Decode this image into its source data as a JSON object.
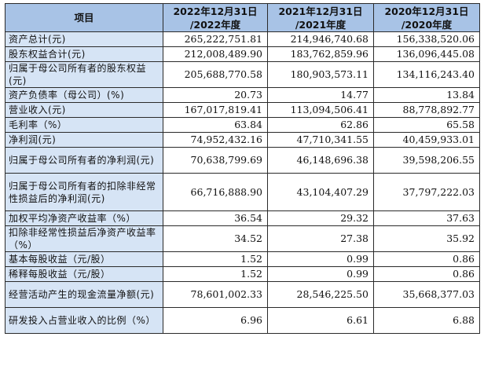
{
  "header": {
    "item": "项目",
    "col1_line1": "2022年12月31日",
    "col1_line2": "/2022年度",
    "col2_line1": "2021年12月31日",
    "col2_line2": "/2021年度",
    "col3_line1": "2020年12月31日",
    "col3_line2": "/2020年度"
  },
  "rows": [
    {
      "label": "资产总计(元)",
      "v2022": "265,222,751.81",
      "v2021": "214,946,740.68",
      "v2020": "156,338,520.06"
    },
    {
      "label": "股东权益合计(元)",
      "v2022": "212,008,489.90",
      "v2021": "183,762,859.96",
      "v2020": "136,096,445.08"
    },
    {
      "label": "归属于母公司所有者的股东权益(元)",
      "v2022": "205,688,770.58",
      "v2021": "180,903,573.11",
      "v2020": "134,116,243.40"
    },
    {
      "label": "资产负债率（母公司）(%)",
      "v2022": "20.73",
      "v2021": "14.77",
      "v2020": "13.84"
    },
    {
      "label": "营业收入(元)",
      "v2022": "167,017,819.41",
      "v2021": "113,094,506.41",
      "v2020": "88,778,892.77"
    },
    {
      "label": "毛利率（%）",
      "v2022": "63.84",
      "v2021": "62.86",
      "v2020": "65.58"
    },
    {
      "label": "净利润(元)",
      "v2022": "74,952,432.16",
      "v2021": "47,710,341.55",
      "v2020": "40,459,933.01"
    },
    {
      "label": "归属于母公司所有者的净利润(元)",
      "v2022": "70,638,799.69",
      "v2021": "46,148,696.38",
      "v2020": "39,598,206.55"
    },
    {
      "label": "归属于母公司所有者的扣除非经常性损益后的净利润(元)",
      "v2022": "66,716,888.90",
      "v2021": "43,104,407.29",
      "v2020": "37,797,222.03"
    },
    {
      "label": "加权平均净资产收益率（%）",
      "v2022": "36.54",
      "v2021": "29.32",
      "v2020": "37.63"
    },
    {
      "label": "扣除非经常性损益后净资产收益率（%）",
      "v2022": "34.52",
      "v2021": "27.38",
      "v2020": "35.92"
    },
    {
      "label": "基本每股收益（元/股）",
      "v2022": "1.52",
      "v2021": "0.99",
      "v2020": "0.86"
    },
    {
      "label": "稀释每股收益（元/股）",
      "v2022": "1.52",
      "v2021": "0.99",
      "v2020": "0.86"
    },
    {
      "label": "经营活动产生的现金流量净额(元)",
      "v2022": "78,601,002.33",
      "v2021": "28,546,225.50",
      "v2020": "35,668,377.03"
    },
    {
      "label": "研发投入占营业收入的比例（%）",
      "v2022": "6.96",
      "v2021": "6.61",
      "v2020": "6.88"
    }
  ]
}
